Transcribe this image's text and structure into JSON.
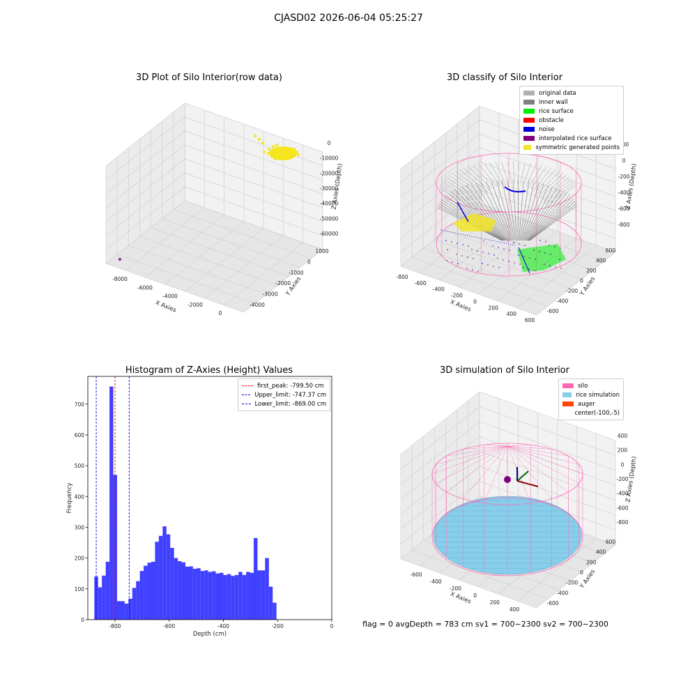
{
  "figure": {
    "suptitle": "CJASD02 2026-06-04 05:25:27",
    "footer": "flag = 0     avgDepth = 783 cm  sv1 = 700~2300  sv2 = 700~2300"
  },
  "colors": {
    "yellow": "#f5e61e",
    "purple": "#8c3a9c",
    "gray_light": "#b0b0b0",
    "gray": "#808080",
    "green": "#00ee00",
    "red": "#ff0000",
    "blue": "#0000dd",
    "dark_purple": "#800080",
    "pink": "#ff69b4",
    "sky": "#87ceeb",
    "orange": "#ff4500",
    "hist_blue": "#4040ff"
  },
  "chart_data": [
    {
      "id": "raw",
      "type": "scatter",
      "title": "3D Plot of Silo Interior(row data)",
      "xlabel": "X Axies",
      "ylabel": "Y Axies",
      "zlabel": "Z Axies (Depth)",
      "x_ticks": [
        "-8000",
        "-6000",
        "-4000",
        "-2000",
        "0"
      ],
      "y_ticks": [
        "1000",
        "0",
        "-1000",
        "-2000",
        "-3000",
        "-4000"
      ],
      "z_ticks": [
        "0",
        "-10000",
        "-20000",
        "-30000",
        "-40000",
        "-50000",
        "-60000"
      ],
      "points_note": "yellow cluster near x≈0,y≈0,z≈-500; one purple outlier near x≈-8500,z≈-60000"
    },
    {
      "id": "classify",
      "type": "scatter",
      "title": "3D classify of Silo Interior",
      "xlabel": "X Axies",
      "ylabel": "Y Axies",
      "zlabel": "Z Axies (Depth)",
      "x_ticks": [
        "-800",
        "-600",
        "-400",
        "-200",
        "0",
        "200",
        "400",
        "600"
      ],
      "y_ticks": [
        "600",
        "400",
        "200",
        "0",
        "-200",
        "-400",
        "-600"
      ],
      "z_ticks": [
        "200",
        "0",
        "-200",
        "-400",
        "-600",
        "-800"
      ],
      "legend": [
        "original data",
        "inner wall",
        "rice surface",
        "obstacle",
        "noise",
        "interpolated rice surface",
        "symmetric generated points"
      ],
      "legend_colors": [
        "#b0b0b0",
        "#808080",
        "#00ee00",
        "#ff0000",
        "#0000dd",
        "#800080",
        "#f5e61e"
      ]
    },
    {
      "id": "hist",
      "type": "bar",
      "title": "Histogram of Z-Axies (Height) Values",
      "xlabel": "Depth (cm)",
      "ylabel": "Frequency",
      "xlim": [
        -900,
        0
      ],
      "ylim": [
        0,
        790
      ],
      "x_ticks": [
        -800,
        -600,
        -400,
        -200,
        0
      ],
      "y_ticks": [
        0,
        100,
        200,
        300,
        400,
        500,
        600,
        700
      ],
      "bin_width": 14,
      "bin_start": -876,
      "values": [
        140,
        105,
        143,
        188,
        757,
        470,
        60,
        60,
        52,
        68,
        103,
        125,
        158,
        175,
        185,
        188,
        253,
        272,
        303,
        277,
        233,
        200,
        190,
        186,
        172,
        173,
        165,
        167,
        158,
        160,
        155,
        157,
        150,
        152,
        145,
        148,
        142,
        145,
        155,
        145,
        155,
        152,
        265,
        160,
        160,
        200,
        107,
        55
      ],
      "lines": [
        {
          "label": "first_peak: -799.50 cm",
          "x": -799.5,
          "color": "#ff0000"
        },
        {
          "label": "Upper_limit: -747.37 cm",
          "x": -747.37,
          "color": "#0000dd"
        },
        {
          "label": "Lower_limit: -869.00 cm",
          "x": -869.0,
          "color": "#0000dd"
        }
      ]
    },
    {
      "id": "sim",
      "type": "scatter",
      "title": "3D simulation of Silo Interior",
      "xlabel": "X Axies",
      "ylabel": "Y Axies",
      "zlabel": "Z Axies (Depth)",
      "x_ticks": [
        "-600",
        "-400",
        "-200",
        "0",
        "200",
        "400"
      ],
      "y_ticks": [
        "600",
        "400",
        "200",
        "0",
        "-200",
        "-400",
        "-600"
      ],
      "z_ticks": [
        "400",
        "200",
        "0",
        "-200",
        "-400",
        "-600",
        "-800"
      ],
      "legend": [
        "silo",
        "rice simulation",
        "auger",
        "center(-100,-5)"
      ],
      "legend_colors": [
        "#ff69b4",
        "#87ceeb",
        "#ff4500",
        ""
      ]
    }
  ]
}
